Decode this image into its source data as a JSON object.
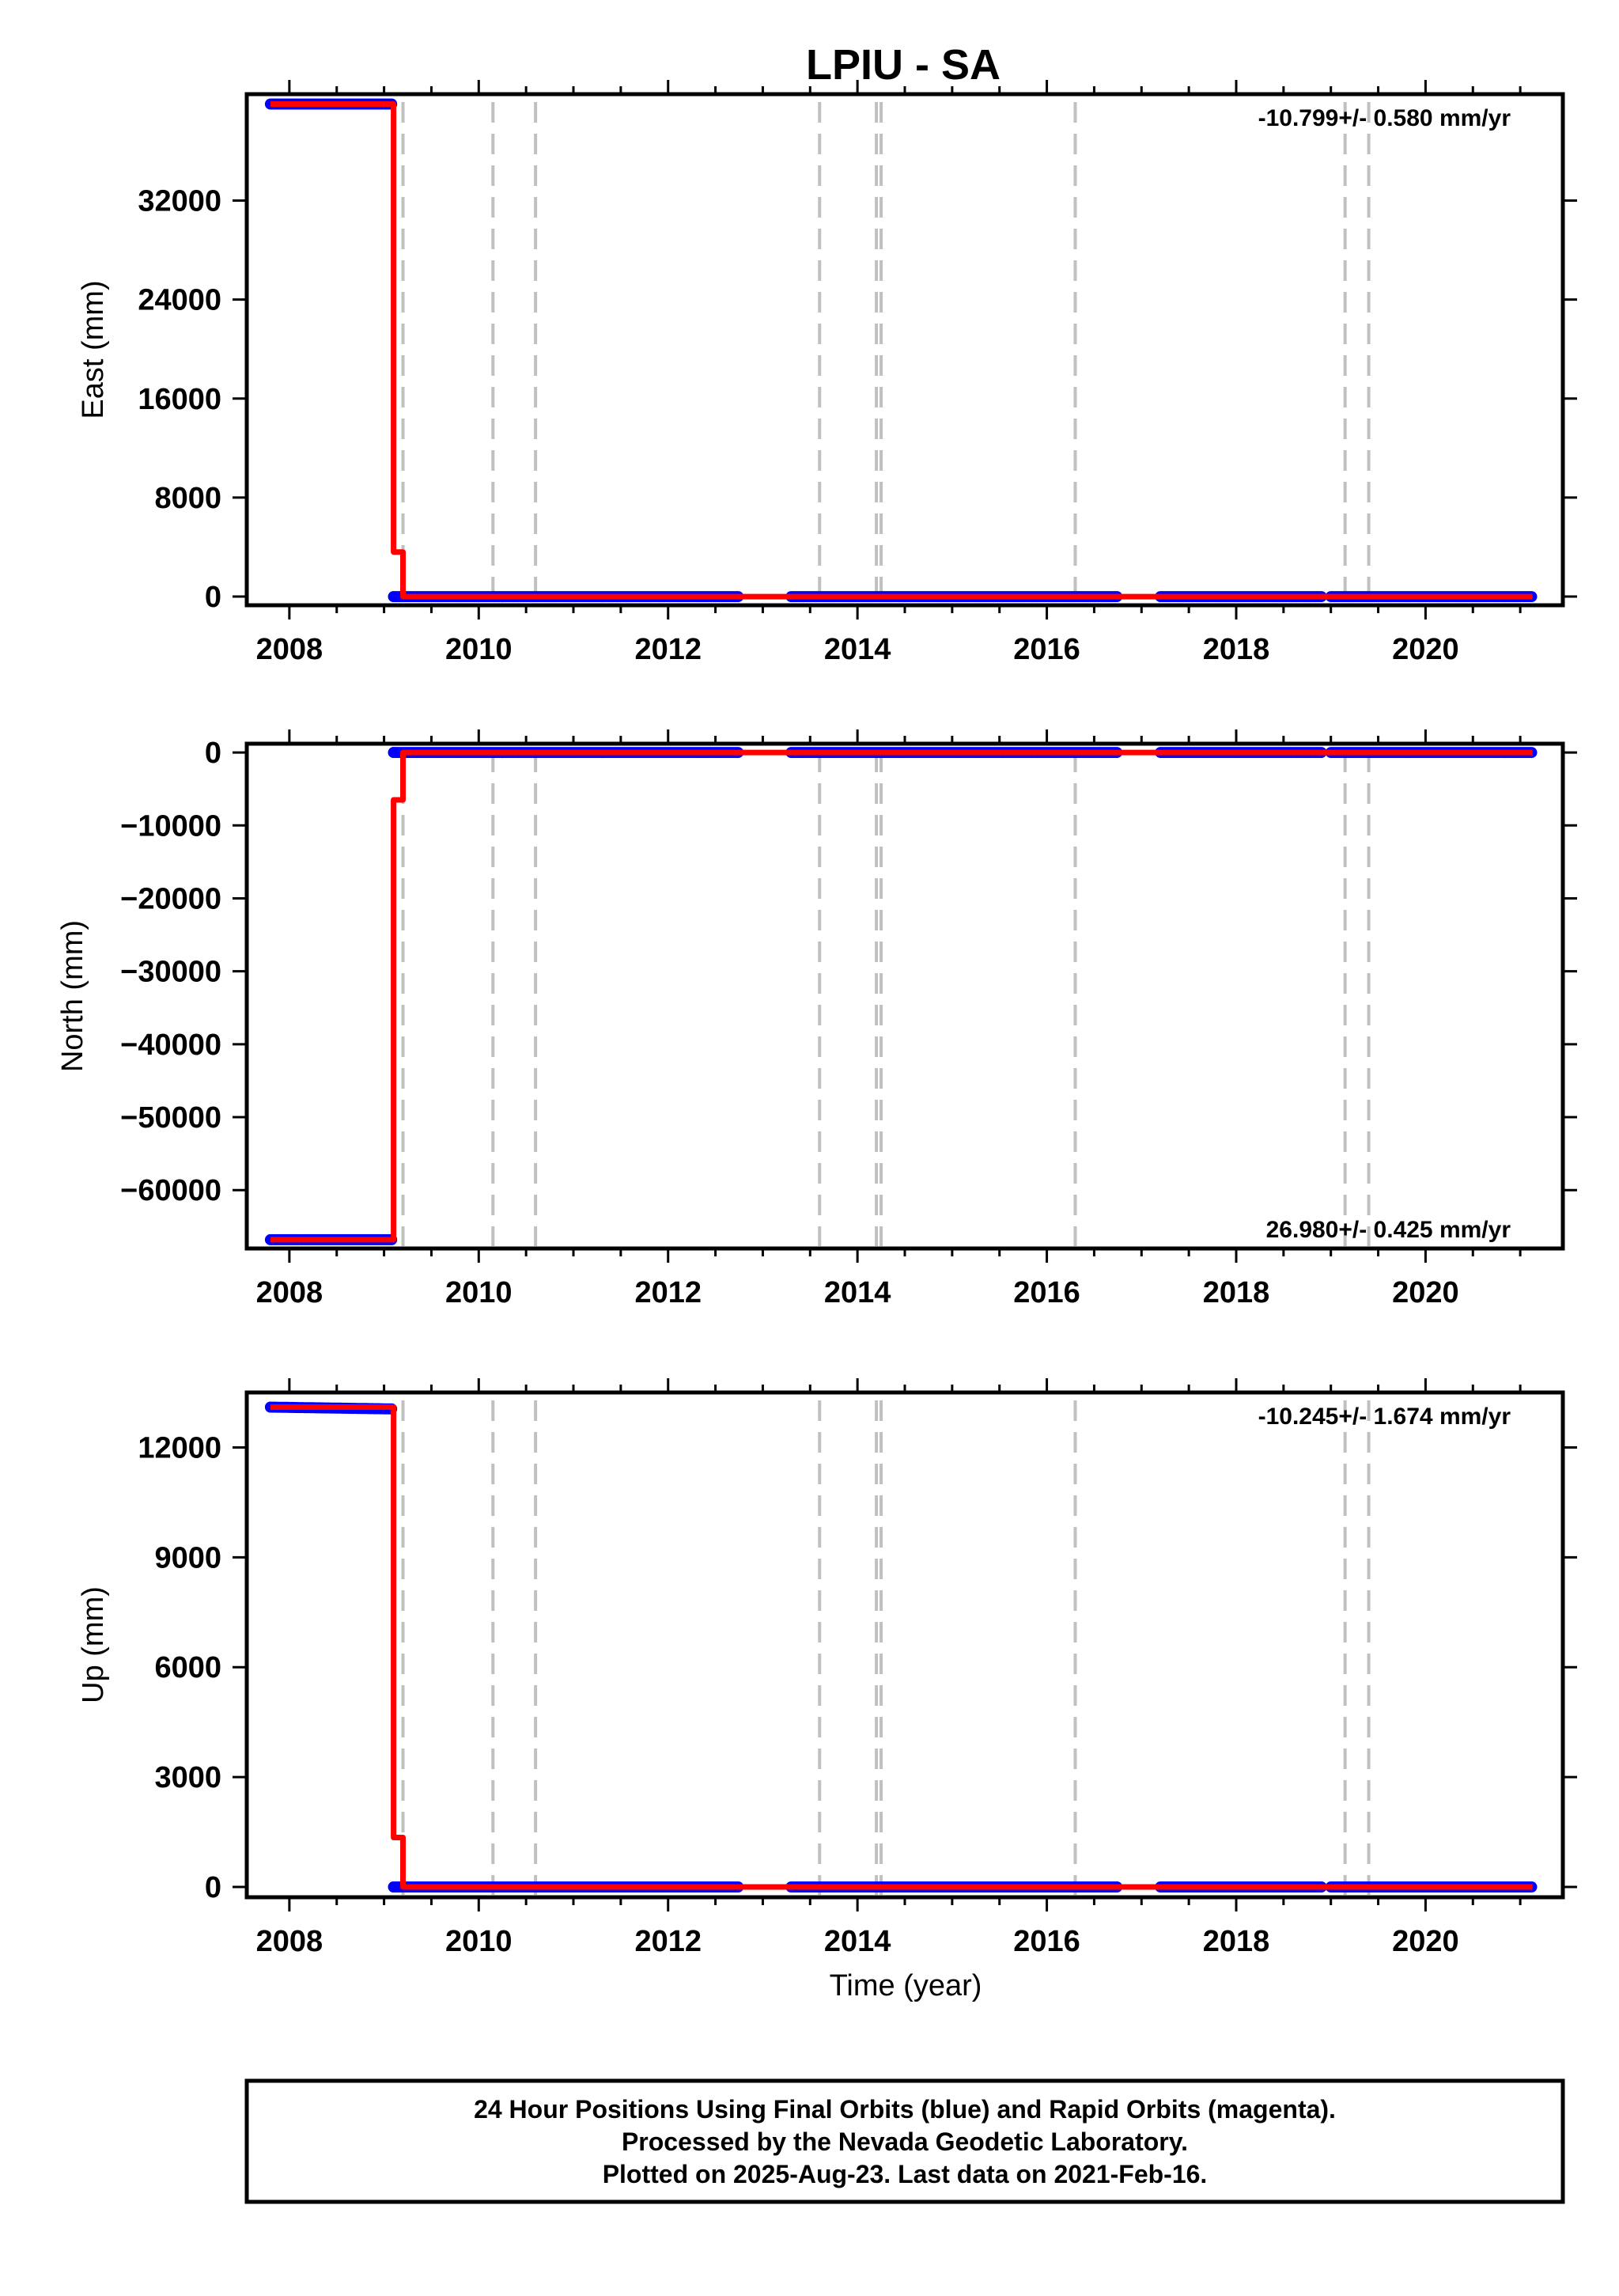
{
  "title": "LPIU - SA",
  "xlabel": "Time (year)",
  "colors": {
    "final": "#0000ff",
    "model": "#ff0000",
    "break": "#c0c0c0",
    "frame": "#000000"
  },
  "footer": {
    "line1": "24 Hour Positions Using Final Orbits (blue) and Rapid Orbits (magenta).",
    "line2": "Processed by the Nevada Geodetic Laboratory.",
    "line3": "Plotted on 2025-Aug-23. Last data on 2021-Feb-16."
  },
  "chart_data": [
    {
      "type": "scatter",
      "ylabel": "East (mm)",
      "rate": "-10.799+/- 0.580 mm/yr",
      "xlim": [
        2007.55,
        2021.45
      ],
      "ylim": [
        -700,
        40600
      ],
      "xticks": [
        2008,
        2010,
        2012,
        2014,
        2016,
        2018,
        2020
      ],
      "yticks": [
        0,
        8000,
        16000,
        24000,
        32000
      ],
      "breaks": [
        2009.2,
        2010.15,
        2010.6,
        2013.6,
        2014.2,
        2014.25,
        2016.3,
        2019.15,
        2019.4
      ],
      "data_segments": [
        [
          2007.8,
          2009.1
        ],
        [
          2009.1,
          2012.75
        ],
        [
          2013.3,
          2016.75
        ],
        [
          2017.2,
          2018.9
        ],
        [
          2019.0,
          2021.13
        ]
      ],
      "series": [
        {
          "name": "final",
          "points": [
            [
              2007.8,
              39800
            ],
            [
              2009.1,
              39800
            ],
            [
              2009.1,
              0
            ],
            [
              2021.13,
              0
            ]
          ]
        },
        {
          "name": "model",
          "points": [
            [
              2007.8,
              39800
            ],
            [
              2009.1,
              39800
            ],
            [
              2009.1,
              3600
            ],
            [
              2009.2,
              3600
            ],
            [
              2009.2,
              0
            ],
            [
              2021.13,
              0
            ]
          ]
        }
      ]
    },
    {
      "type": "scatter",
      "ylabel": "North (mm)",
      "rate": "26.980+/- 0.425 mm/yr",
      "xlim": [
        2007.55,
        2021.45
      ],
      "ylim": [
        -68000,
        1200
      ],
      "xticks": [
        2008,
        2010,
        2012,
        2014,
        2016,
        2018,
        2020
      ],
      "yticks": [
        0,
        -10000,
        -20000,
        -30000,
        -40000,
        -50000,
        -60000
      ],
      "breaks": [
        2009.2,
        2010.15,
        2010.6,
        2013.6,
        2014.2,
        2014.25,
        2016.3,
        2019.15,
        2019.4
      ],
      "data_segments": [
        [
          2007.8,
          2009.1
        ],
        [
          2009.1,
          2012.75
        ],
        [
          2013.3,
          2016.75
        ],
        [
          2017.2,
          2018.9
        ],
        [
          2019.0,
          2021.13
        ]
      ],
      "series": [
        {
          "name": "final",
          "points": [
            [
              2007.8,
              -66800
            ],
            [
              2009.1,
              -66800
            ],
            [
              2009.1,
              0
            ],
            [
              2021.13,
              0
            ]
          ]
        },
        {
          "name": "model",
          "points": [
            [
              2007.8,
              -66800
            ],
            [
              2009.1,
              -66800
            ],
            [
              2009.1,
              -6500
            ],
            [
              2009.2,
              -6500
            ],
            [
              2009.2,
              0
            ],
            [
              2021.13,
              0
            ]
          ]
        }
      ]
    },
    {
      "type": "scatter",
      "ylabel": "Up (mm)",
      "rate": "-10.245+/- 1.674 mm/yr",
      "xlim": [
        2007.55,
        2021.45
      ],
      "ylim": [
        -280,
        13500
      ],
      "xticks": [
        2008,
        2010,
        2012,
        2014,
        2016,
        2018,
        2020
      ],
      "yticks": [
        0,
        3000,
        6000,
        9000,
        12000
      ],
      "breaks": [
        2009.2,
        2010.15,
        2010.6,
        2013.6,
        2014.2,
        2014.25,
        2016.3,
        2019.15,
        2019.4
      ],
      "data_segments": [
        [
          2007.8,
          2009.1
        ],
        [
          2009.1,
          2012.75
        ],
        [
          2013.3,
          2016.75
        ],
        [
          2017.2,
          2018.9
        ],
        [
          2019.0,
          2021.13
        ]
      ],
      "series": [
        {
          "name": "final",
          "points": [
            [
              2007.8,
              13100
            ],
            [
              2009.1,
              13050
            ],
            [
              2009.1,
              0
            ],
            [
              2021.13,
              0
            ]
          ]
        },
        {
          "name": "model",
          "points": [
            [
              2007.8,
              13100
            ],
            [
              2009.1,
              13100
            ],
            [
              2009.1,
              1350
            ],
            [
              2009.2,
              1350
            ],
            [
              2009.2,
              0
            ],
            [
              2021.13,
              0
            ]
          ]
        }
      ]
    }
  ]
}
